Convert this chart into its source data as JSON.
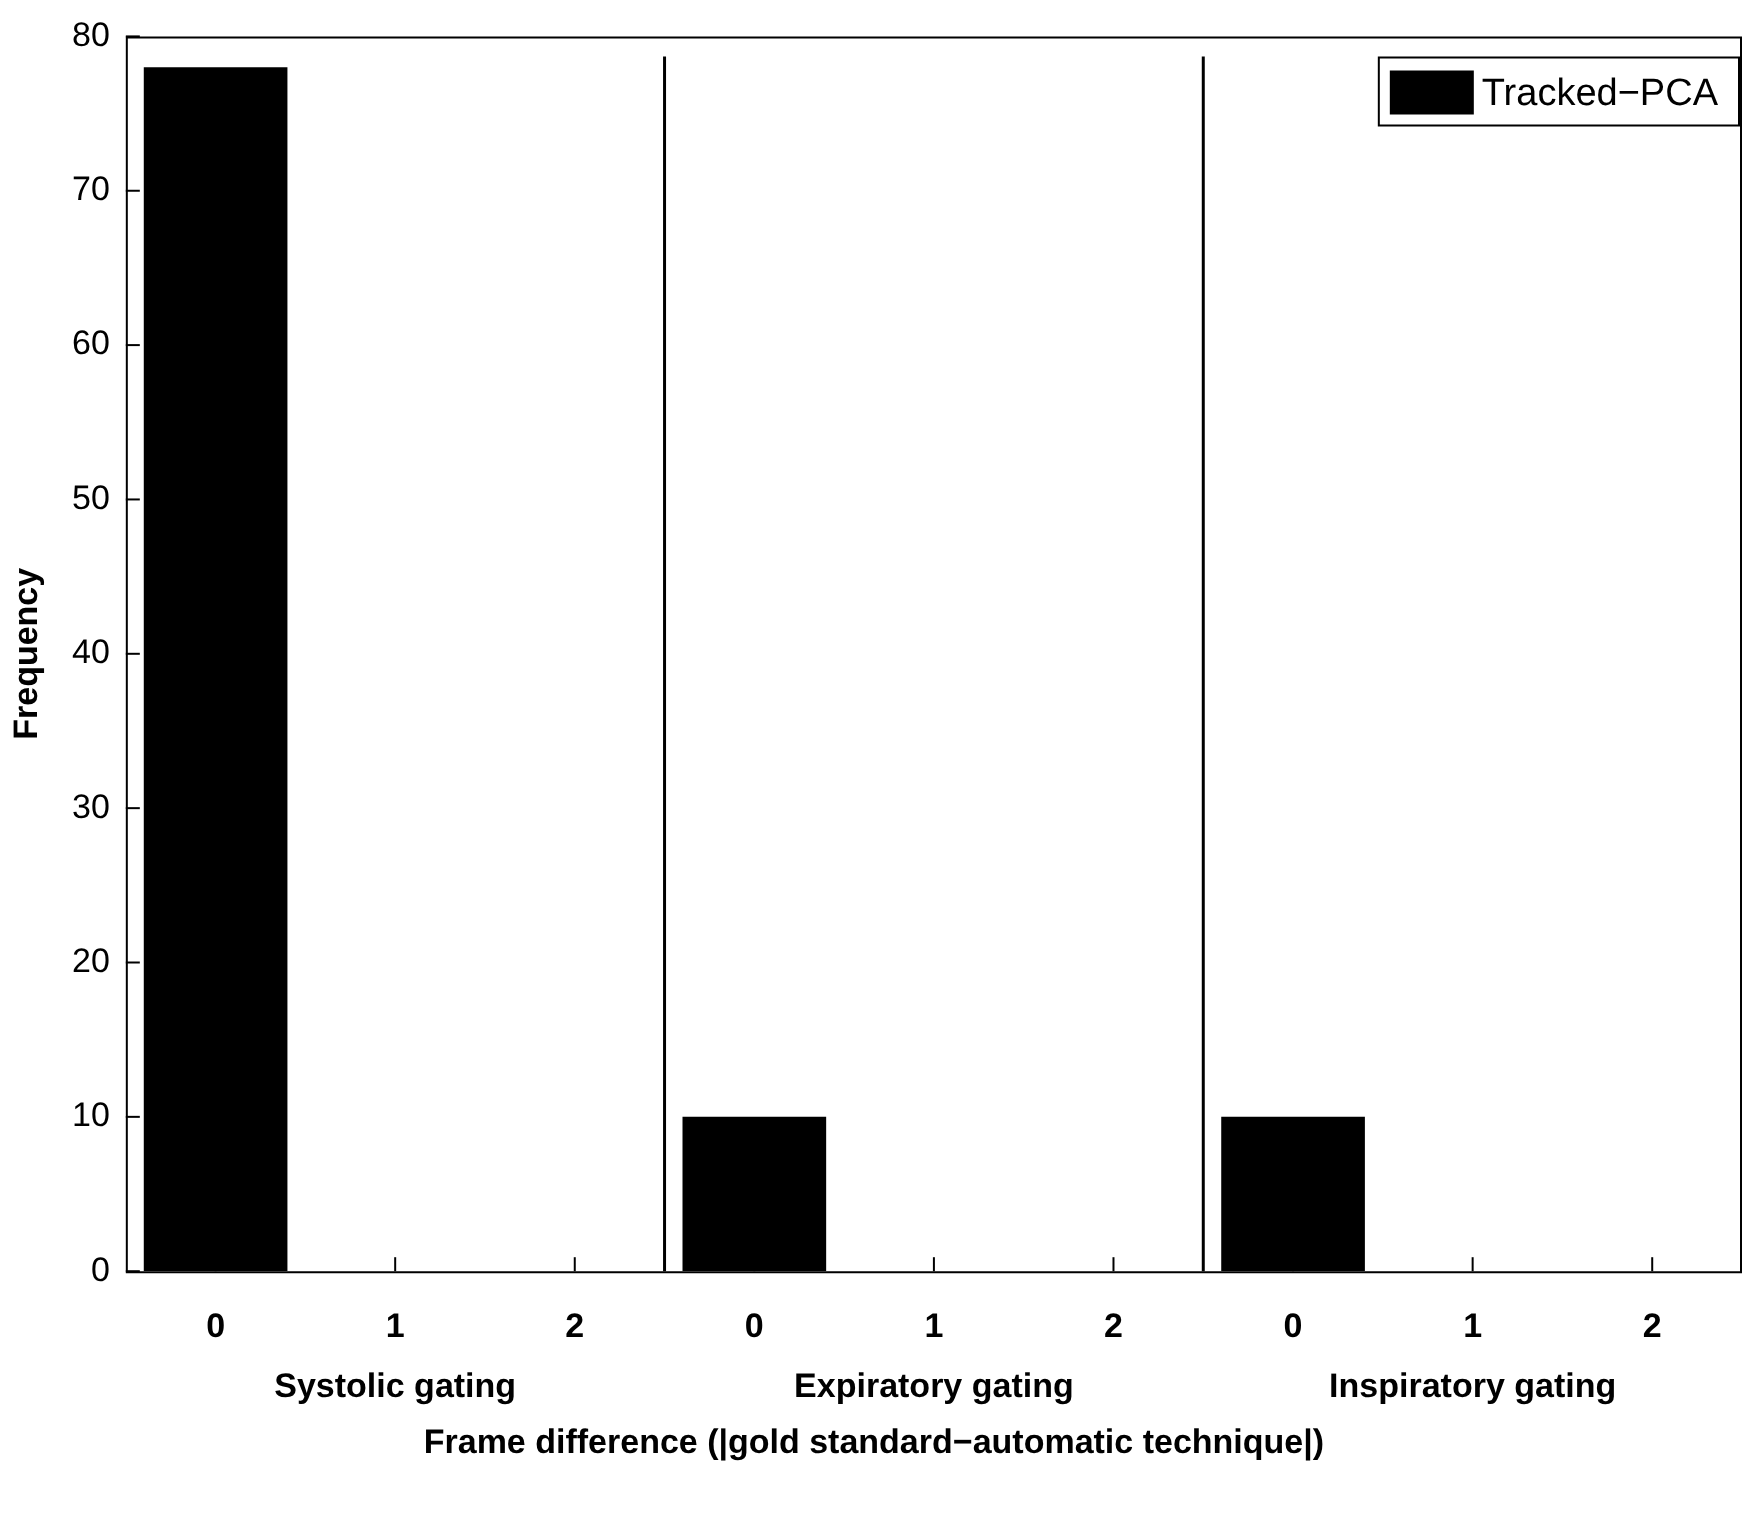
{
  "chart_data": {
    "type": "bar",
    "xlabel": "Frame difference (|gold standard−automatic technique|)",
    "ylabel": "Frequency",
    "categories": [
      "0",
      "1",
      "2",
      "0",
      "1",
      "2",
      "0",
      "1",
      "2"
    ],
    "series": [
      {
        "name": "Tracked−PCA",
        "color": "#000000",
        "values": [
          78,
          0,
          0,
          10,
          0,
          0,
          10,
          0,
          0
        ]
      }
    ],
    "ylim": [
      0,
      80
    ],
    "yticks": [
      0,
      10,
      20,
      30,
      40,
      50,
      60,
      70,
      80
    ],
    "annotations": [
      "Systolic gating",
      "Expiratory gating",
      "Inspiratory gating"
    ],
    "grid": false,
    "legend": "top right"
  }
}
